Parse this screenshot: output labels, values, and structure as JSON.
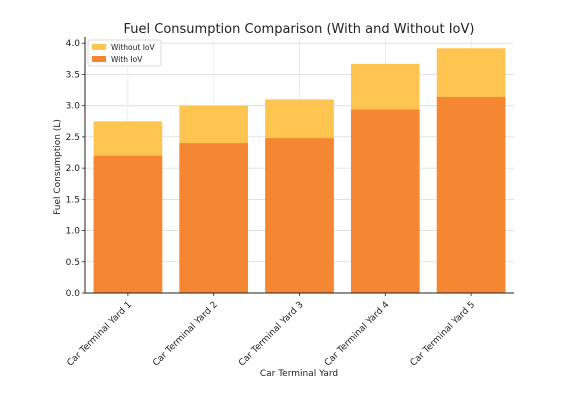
{
  "chart_data": {
    "type": "bar",
    "title": "Fuel Consumption Comparison (With and Without IoV)",
    "xlabel": "Car Terminal Yard",
    "ylabel": "Fuel Consumption (L)",
    "categories": [
      "Car Terminal Yard 1",
      "Car Terminal Yard 2",
      "Car Terminal Yard 3",
      "Car Terminal Yard 4",
      "Car Terminal Yard 5"
    ],
    "series": [
      {
        "name": "Without IoV",
        "values": [
          2.75,
          3.0,
          3.1,
          3.67,
          3.92
        ],
        "color": "#fdc44f"
      },
      {
        "name": "With IoV",
        "values": [
          2.2,
          2.4,
          2.48,
          2.94,
          3.14
        ],
        "color": "#f58733"
      }
    ],
    "ylim": [
      0,
      4.1
    ],
    "yticks": [
      "0.0",
      "0.5",
      "1.0",
      "1.5",
      "2.0",
      "2.5",
      "3.0",
      "3.5",
      "4.0"
    ],
    "grid": true,
    "legend_position": "top-left"
  }
}
